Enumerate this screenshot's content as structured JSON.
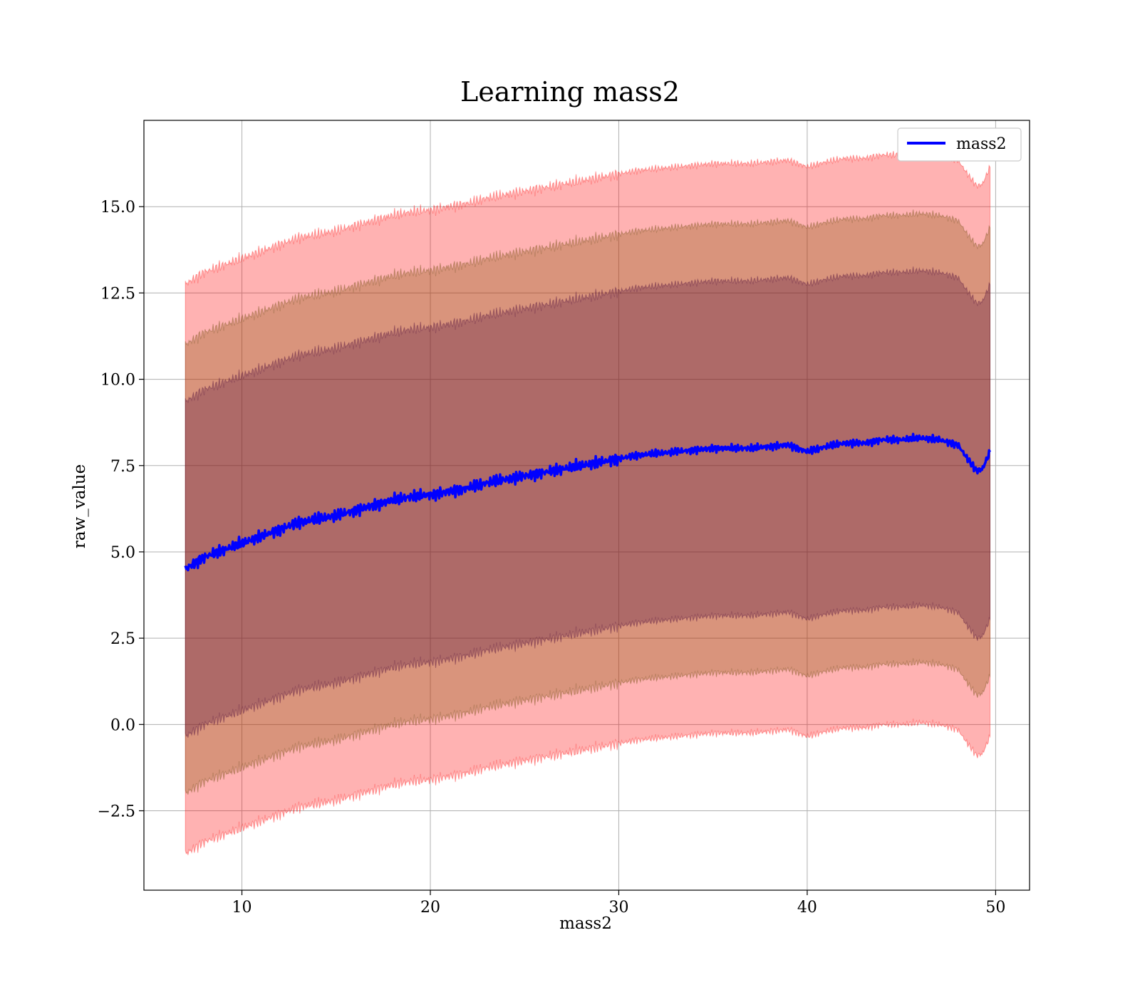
{
  "chart_data": {
    "type": "line",
    "title": "Learning mass2",
    "xlabel": "mass2",
    "ylabel": "raw_value",
    "xlim": [
      4.8,
      51.8
    ],
    "ylim": [
      -4.8,
      17.5
    ],
    "x_ticks": [
      10,
      20,
      30,
      40,
      50
    ],
    "x_tick_labels": [
      "10",
      "20",
      "30",
      "40",
      "50"
    ],
    "y_ticks": [
      -2.5,
      0.0,
      2.5,
      5.0,
      7.5,
      10.0,
      12.5,
      15.0
    ],
    "y_tick_labels": [
      "−2.5",
      "0.0",
      "2.5",
      "5.0",
      "7.5",
      "10.0",
      "12.5",
      "15.0"
    ],
    "grid": true,
    "legend": {
      "position": "top-right",
      "entries": [
        "mass2"
      ]
    },
    "colors": {
      "line": "#0000ff",
      "band": "#ff0000",
      "inner": "#5a1a3a"
    },
    "series": [
      {
        "name": "mass2",
        "x": [
          7.0,
          8.0,
          9.0,
          10.0,
          11.0,
          12.0,
          13.0,
          14.0,
          15.0,
          16.0,
          17.0,
          18.0,
          19.0,
          20.0,
          21.0,
          22.0,
          23.0,
          24.0,
          25.0,
          26.0,
          27.0,
          28.0,
          29.0,
          30.0,
          31.0,
          32.0,
          33.0,
          34.0,
          35.0,
          36.0,
          37.0,
          38.0,
          39.0,
          40.0,
          41.0,
          42.0,
          43.0,
          44.0,
          45.0,
          46.0,
          47.0,
          48.0,
          48.5,
          49.0,
          49.3,
          49.7
        ],
        "y": [
          4.5,
          4.85,
          5.05,
          5.25,
          5.45,
          5.65,
          5.85,
          5.95,
          6.05,
          6.2,
          6.35,
          6.5,
          6.6,
          6.65,
          6.75,
          6.85,
          7.0,
          7.1,
          7.2,
          7.3,
          7.4,
          7.5,
          7.6,
          7.7,
          7.8,
          7.85,
          7.9,
          7.95,
          8.0,
          8.0,
          8.0,
          8.05,
          8.1,
          7.9,
          8.05,
          8.15,
          8.15,
          8.25,
          8.25,
          8.3,
          8.25,
          8.1,
          7.7,
          7.35,
          7.4,
          7.9
        ]
      }
    ],
    "bands": [
      {
        "level": "outer",
        "half_width": 8.25
      },
      {
        "level": "middle",
        "half_width": 6.5
      },
      {
        "level": "inner",
        "half_width": 4.85
      }
    ]
  }
}
